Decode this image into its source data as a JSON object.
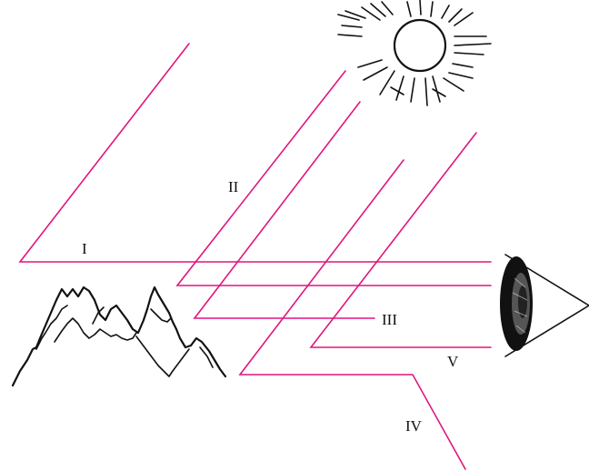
{
  "diagram": {
    "labels": {
      "path_1": "I",
      "path_2": "II",
      "path_3": "III",
      "path_4": "IV",
      "path_5": "V"
    },
    "colors": {
      "ray": "#e0157f",
      "ink": "#111111",
      "background": "#ffffff"
    },
    "icons": [
      "sun-icon",
      "mountains-icon",
      "eye-icon"
    ]
  }
}
